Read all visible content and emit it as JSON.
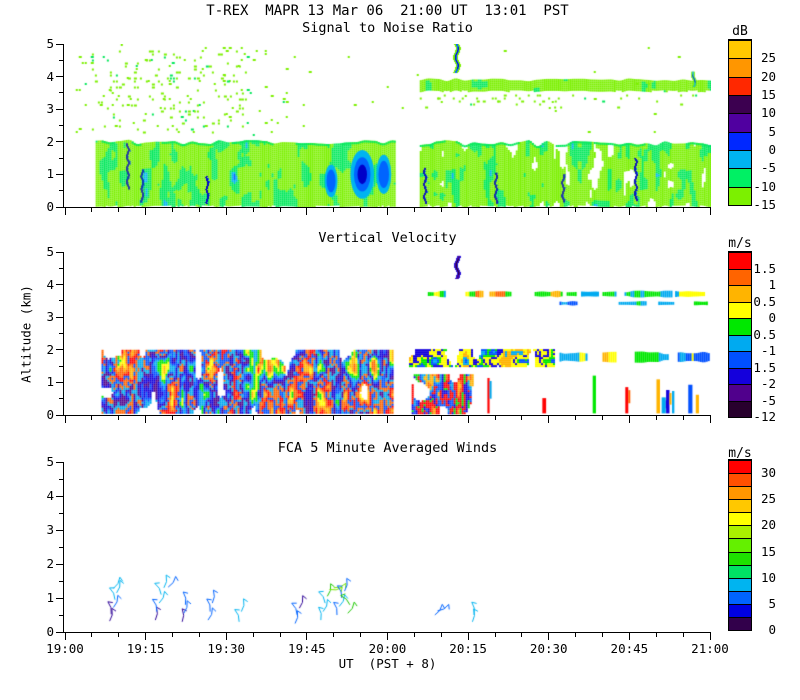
{
  "header": {
    "title": "T-REX  MAPR 13 Mar 06  21:00 UT  13:01  PST"
  },
  "axes": {
    "x": {
      "label": "UT  (PST + 8)",
      "ticks": [
        "19:00",
        "19:15",
        "19:30",
        "19:45",
        "20:00",
        "20:15",
        "20:30",
        "20:45",
        "21:00"
      ],
      "t_minutes": [
        0,
        15,
        30,
        45,
        60,
        75,
        90,
        105,
        120
      ],
      "minor_step_minutes": 5,
      "range_minutes": [
        0,
        120
      ]
    },
    "y": {
      "label": "Altitude (km)",
      "ticks": [
        "0",
        "1",
        "2",
        "3",
        "4",
        "5"
      ],
      "values": [
        0,
        1,
        2,
        3,
        4,
        5
      ],
      "minor_step_km": 0.5,
      "range_km": [
        0,
        5
      ]
    }
  },
  "chart_data": [
    {
      "type": "heatmap",
      "title": "Signal to Noise Ratio",
      "xlabel": "UT  (PST + 8)",
      "ylabel": "Altitude (km)",
      "xlim": [
        "19:00",
        "21:00"
      ],
      "ylim": [
        0,
        5
      ],
      "colorbar": {
        "units": "dB",
        "colors": [
          "#FFC800",
          "#FF9600",
          "#FF2800",
          "#3C0050",
          "#5000A0",
          "#0028FF",
          "#00B4F0",
          "#00F064",
          "#7CF000"
        ],
        "tick_labels": [
          "25",
          "20",
          "15",
          "10",
          "5",
          "0",
          "-5",
          "-10",
          "-15"
        ],
        "label_every": 1
      },
      "features": [
        {
          "kind": "speckle",
          "t": [
            2,
            42
          ],
          "z": [
            2.15,
            5.0
          ],
          "density": 0.045,
          "colors": [
            "#7CF000",
            "#00E85A"
          ],
          "seed": 11
        },
        {
          "kind": "speckle",
          "t": [
            5,
            34
          ],
          "z": [
            2.3,
            4.8
          ],
          "density": 0.1,
          "colors": [
            "#7CF000",
            "#00E85A"
          ],
          "seed": 12
        },
        {
          "kind": "speckle",
          "t": [
            42,
            120
          ],
          "z": [
            2.25,
            5.0
          ],
          "density": 0.005,
          "colors": [
            "#7CF000"
          ],
          "seed": 13
        },
        {
          "kind": "band",
          "t": [
            5.7,
            61.3
          ],
          "z": [
            0.05,
            2.08
          ],
          "edge": 0.18,
          "seed": 21,
          "fx": 0.1,
          "fy": 0.045,
          "stops": [
            [
              0.06,
              null
            ],
            [
              0.58,
              "#7CF000"
            ],
            [
              0.82,
              "#00E85A"
            ],
            [
              0.93,
              "#00B4F0"
            ],
            [
              1.01,
              "#0064FF"
            ]
          ],
          "topline": "#00E85A"
        },
        {
          "kind": "band",
          "t": [
            66,
            120
          ],
          "z": [
            0.05,
            2.05
          ],
          "edge": 0.22,
          "seed": 22,
          "fx": 0.13,
          "fy": 0.03,
          "stops": [
            [
              0.3,
              null
            ],
            [
              0.66,
              "#7CF000"
            ],
            [
              0.86,
              "#00E85A"
            ],
            [
              0.95,
              "#00B4F0"
            ],
            [
              1.01,
              "#0064FF"
            ]
          ],
          "topline": "#00E85A"
        },
        {
          "kind": "band",
          "t": [
            66,
            120
          ],
          "z": [
            3.58,
            3.95
          ],
          "edge": 0.1,
          "seed": 23,
          "fx": 0.06,
          "fy": 0.1,
          "stops": [
            [
              0.12,
              null
            ],
            [
              0.66,
              "#7CF000"
            ],
            [
              0.92,
              "#00E85A"
            ],
            [
              1.01,
              "#00B4F0"
            ]
          ]
        },
        {
          "kind": "speckle",
          "t": [
            67,
            120
          ],
          "z": [
            3.05,
            3.45
          ],
          "density": 0.06,
          "colors": [
            "#7CF000",
            "#00E85A"
          ],
          "seed": 24
        },
        {
          "kind": "speckle",
          "t": [
            66,
            92
          ],
          "z": [
            3.1,
            3.45
          ],
          "density": 0.1,
          "colors": [
            "#7CF000"
          ],
          "seed": 25
        },
        {
          "kind": "streak",
          "t": 72.9,
          "z": [
            4.12,
            5.0
          ],
          "w": 5,
          "layers": [
            "#7CF000",
            "#0064FF",
            "#0000C8"
          ],
          "seed": 26
        },
        {
          "kind": "streak",
          "t": 117,
          "z": [
            3.7,
            4.15
          ],
          "w": 4,
          "layers": [
            "#7CF000",
            "#00B4F0",
            "#0000C8"
          ],
          "seed": 27
        },
        {
          "kind": "vstreaks",
          "seed": 28,
          "color": "#0000C8",
          "accent": "#0064FF",
          "items": [
            {
              "t": 11.5,
              "z": [
                0.55,
                1.95
              ]
            },
            {
              "t": 14.2,
              "z": [
                0.15,
                1.15
              ]
            },
            {
              "t": 26.3,
              "z": [
                0.1,
                0.95
              ]
            },
            {
              "t": 66.8,
              "z": [
                0.1,
                1.2
              ]
            },
            {
              "t": 80,
              "z": [
                0.1,
                1.05
              ]
            },
            {
              "t": 92.5,
              "z": [
                0.15,
                1.0
              ]
            },
            {
              "t": 106,
              "z": [
                0.2,
                1.5
              ]
            }
          ]
        },
        {
          "kind": "blob",
          "t": 55.3,
          "z": 1.0,
          "rt": 2.2,
          "rz": 0.75,
          "layers": [
            "#00B4F0",
            "#0064FF",
            "#0000C8"
          ],
          "seed": 29
        },
        {
          "kind": "blob",
          "t": 59.3,
          "z": 1.0,
          "rt": 1.4,
          "rz": 0.6,
          "layers": [
            "#00B4F0",
            "#0064FF"
          ],
          "seed": 30
        },
        {
          "kind": "blob",
          "t": 49.5,
          "z": 0.8,
          "rt": 1.2,
          "rz": 0.5,
          "layers": [
            "#00B4F0",
            "#0064FF"
          ],
          "seed": 31
        }
      ]
    },
    {
      "type": "heatmap",
      "title": "Vertical Velocity",
      "xlabel": "UT  (PST + 8)",
      "ylabel": "Altitude (km)",
      "xlim": [
        "19:00",
        "21:00"
      ],
      "ylim": [
        0,
        5
      ],
      "colorbar": {
        "units": "m/s",
        "colors": [
          "#FF0000",
          "#FF6400",
          "#FFB400",
          "#FFFF00",
          "#00E800",
          "#00AAF0",
          "#0050FF",
          "#1400DC",
          "#50008C",
          "#28002D"
        ],
        "tick_labels": [
          "1.5",
          "1",
          "0.5",
          "0",
          "-0.5",
          "-1",
          "-1.5",
          "-2",
          "-5",
          "-12"
        ],
        "label_every": 1
      },
      "features": [
        {
          "kind": "mosaic",
          "t": [
            6.8,
            61
          ],
          "z": [
            0.05,
            2.0
          ],
          "seed": 41,
          "fx": 0.11,
          "fy": 0.035,
          "hole": 0.16,
          "palette": [
            "#FF0000",
            "#FF6400",
            "#FFB400",
            "#FFFF00",
            "#00E800",
            "#00AAF0",
            "#0050FF",
            "#1400DC",
            "#50008C",
            "#00AAF0",
            "#FF6400",
            "#0050FF"
          ]
        },
        {
          "kind": "mosaic",
          "t": [
            64.5,
            76
          ],
          "z": [
            0.05,
            1.25
          ],
          "seed": 42,
          "fx": 0.16,
          "fy": 0.025,
          "hole": 0.3,
          "palette": [
            "#FF0000",
            "#FF0000",
            "#FF6400",
            "#FFB400",
            "#00AAF0",
            "#0050FF",
            "#FF0000",
            "#1400DC",
            "#00E800"
          ]
        },
        {
          "kind": "columns",
          "t": [
            76,
            120
          ],
          "z0": 0.05,
          "seed": 43,
          "p": 0.42,
          "colors": [
            "#FF0000",
            "#FF0000",
            "#FF6400",
            "#00AAF0",
            "#0050FF",
            "#1400DC",
            "#00E800",
            "#FFB400"
          ]
        },
        {
          "kind": "mosaic",
          "t": [
            64,
            91
          ],
          "z": [
            1.5,
            2.02
          ],
          "seed": 44,
          "fx": 0.07,
          "fy": 0.12,
          "hole": 0.22,
          "palette": [
            "#FFFF00",
            "#FFB400",
            "#00AAF0",
            "#0050FF",
            "#00E800",
            "#FFFF00",
            "#1400DC"
          ]
        },
        {
          "kind": "patches",
          "z": [
            1.6,
            1.95
          ],
          "seed": 45,
          "items": [
            {
              "t": [
                92,
                97
              ],
              "colors": [
                "#FFFF00",
                "#00AAF0"
              ]
            },
            {
              "t": [
                100,
                104
              ],
              "colors": [
                "#FFFF00",
                "#FFB400"
              ]
            },
            {
              "t": [
                106,
                112
              ],
              "colors": [
                "#0050FF",
                "#00AAF0",
                "#00E800"
              ]
            },
            {
              "t": [
                114,
                120
              ],
              "colors": [
                "#00AAF0",
                "#0050FF",
                "#FFFF00"
              ]
            }
          ]
        },
        {
          "kind": "patches",
          "z": [
            3.6,
            3.82
          ],
          "seed": 46,
          "items": [
            {
              "t": [
                67.5,
                70.5
              ],
              "colors": [
                "#00AAF0",
                "#00E800",
                "#FFFF00"
              ]
            },
            {
              "t": [
                74.5,
                83
              ],
              "colors": [
                "#FFFF00",
                "#FFB400",
                "#FF6400",
                "#00E800"
              ]
            },
            {
              "t": [
                87,
                95
              ],
              "colors": [
                "#FFFF00",
                "#00E800",
                "#FFB400"
              ]
            },
            {
              "t": [
                96,
                99
              ],
              "colors": [
                "#00AAF0"
              ]
            },
            {
              "t": [
                100,
                113
              ],
              "colors": [
                "#00E800",
                "#00AAF0",
                "#00E800"
              ]
            },
            {
              "t": [
                113.5,
                120
              ],
              "colors": [
                "#00E800",
                "#00AAF0",
                "#FFFF00"
              ]
            }
          ]
        },
        {
          "kind": "patches",
          "z": [
            3.35,
            3.5
          ],
          "seed": 47,
          "items": [
            {
              "t": [
                92,
                95
              ],
              "colors": [
                "#00AAF0",
                "#0050FF"
              ]
            },
            {
              "t": [
                103,
                108
              ],
              "colors": [
                "#00E800",
                "#00AAF0"
              ]
            },
            {
              "t": [
                110,
                113
              ],
              "colors": [
                "#00AAF0"
              ]
            },
            {
              "t": [
                117,
                120
              ],
              "colors": [
                "#00E800"
              ]
            }
          ]
        },
        {
          "kind": "streak",
          "t": 73,
          "z": [
            4.2,
            4.88
          ],
          "w": 4,
          "layers": [
            "#1400DC",
            "#50008C",
            "#28002D"
          ],
          "seed": 48
        }
      ]
    },
    {
      "type": "wind-barbs",
      "title": "FCA 5 Minute Averaged Winds",
      "xlabel": "UT  (PST + 8)",
      "ylabel": "Altitude (km)",
      "xlim": [
        "19:00",
        "21:00"
      ],
      "ylim": [
        0,
        5
      ],
      "colorbar": {
        "units": "m/s",
        "colors": [
          "#FF0000",
          "#FF5000",
          "#FF9600",
          "#FFC800",
          "#FFFF00",
          "#AAF000",
          "#64F000",
          "#1EE100",
          "#00E164",
          "#00B4F0",
          "#0064FF",
          "#0000E1",
          "#32004B"
        ],
        "tick_labels": [
          "30",
          "25",
          "20",
          "15",
          "10",
          "5",
          "0"
        ],
        "label_every": 2
      },
      "barb_color_key": {
        "cy": "#00B4F0",
        "bl": "#0064FF",
        "pu": "#2D0096",
        "gr": "#1EC800",
        "lg": "#78E600"
      },
      "barbs": [
        {
          "t": 8.3,
          "z": 0.32,
          "c": "pu",
          "a": 10
        },
        {
          "t": 8.6,
          "z": 0.52,
          "c": "pu",
          "a": -15
        },
        {
          "t": 9.0,
          "z": 0.72,
          "c": "bl",
          "a": 20
        },
        {
          "t": 9.3,
          "z": 0.95,
          "c": "cy",
          "a": -25
        },
        {
          "t": 9.6,
          "z": 1.15,
          "c": "cy",
          "a": 15
        },
        {
          "t": 9.0,
          "z": 1.28,
          "c": "cy",
          "a": 30
        },
        {
          "t": 16.8,
          "z": 0.35,
          "c": "pu",
          "a": 5
        },
        {
          "t": 17.1,
          "z": 0.6,
          "c": "bl",
          "a": -20
        },
        {
          "t": 17.5,
          "z": 0.85,
          "c": "cy",
          "a": 25
        },
        {
          "t": 17.9,
          "z": 1.1,
          "c": "cy",
          "a": -30
        },
        {
          "t": 18.4,
          "z": 1.3,
          "c": "cy",
          "a": 10
        },
        {
          "t": 19.2,
          "z": 1.32,
          "c": "bl",
          "a": 35
        },
        {
          "t": 21.8,
          "z": 0.3,
          "c": "pu",
          "a": 0
        },
        {
          "t": 22.1,
          "z": 0.55,
          "c": "bl",
          "a": 15
        },
        {
          "t": 22.4,
          "z": 0.8,
          "c": "bl",
          "a": -10
        },
        {
          "t": 26.6,
          "z": 0.35,
          "c": "bl",
          "a": 20
        },
        {
          "t": 27.0,
          "z": 0.6,
          "c": "bl",
          "a": -15
        },
        {
          "t": 27.4,
          "z": 0.85,
          "c": "bl",
          "a": 5
        },
        {
          "t": 32.4,
          "z": 0.3,
          "c": "cy",
          "a": -20
        },
        {
          "t": 32.8,
          "z": 0.6,
          "c": "cy",
          "a": 10
        },
        {
          "t": 42.8,
          "z": 0.25,
          "c": "bl",
          "a": 10
        },
        {
          "t": 43.2,
          "z": 0.5,
          "c": "bl",
          "a": -25
        },
        {
          "t": 43.6,
          "z": 0.7,
          "c": "pu",
          "a": 15
        },
        {
          "t": 47.6,
          "z": 0.35,
          "c": "cy",
          "a": -10
        },
        {
          "t": 48.0,
          "z": 0.6,
          "c": "cy",
          "a": 20
        },
        {
          "t": 48.4,
          "z": 0.85,
          "c": "cy",
          "a": -30
        },
        {
          "t": 48.8,
          "z": 1.05,
          "c": "gr",
          "a": 15
        },
        {
          "t": 49.2,
          "z": 1.25,
          "c": "lg",
          "a": 80
        },
        {
          "t": 50.0,
          "z": 1.3,
          "c": "lg",
          "a": 70
        },
        {
          "t": 50.6,
          "z": 0.5,
          "c": "bl",
          "a": -15
        },
        {
          "t": 51.0,
          "z": 0.75,
          "c": "cy",
          "a": 25
        },
        {
          "t": 51.5,
          "z": 1.0,
          "c": "bl",
          "a": -20
        },
        {
          "t": 52.0,
          "z": 1.2,
          "c": "bl",
          "a": 10
        },
        {
          "t": 52.6,
          "z": 0.55,
          "c": "gr",
          "a": 30
        },
        {
          "t": 53.0,
          "z": 0.8,
          "c": "gr",
          "a": -45
        },
        {
          "t": 68.8,
          "z": 0.5,
          "c": "bl",
          "a": 35
        },
        {
          "t": 69.3,
          "z": 0.62,
          "c": "bl",
          "a": 60
        },
        {
          "t": 75.8,
          "z": 0.3,
          "c": "cy",
          "a": 5
        },
        {
          "t": 76.1,
          "z": 0.5,
          "c": "cy",
          "a": -10
        }
      ]
    }
  ]
}
